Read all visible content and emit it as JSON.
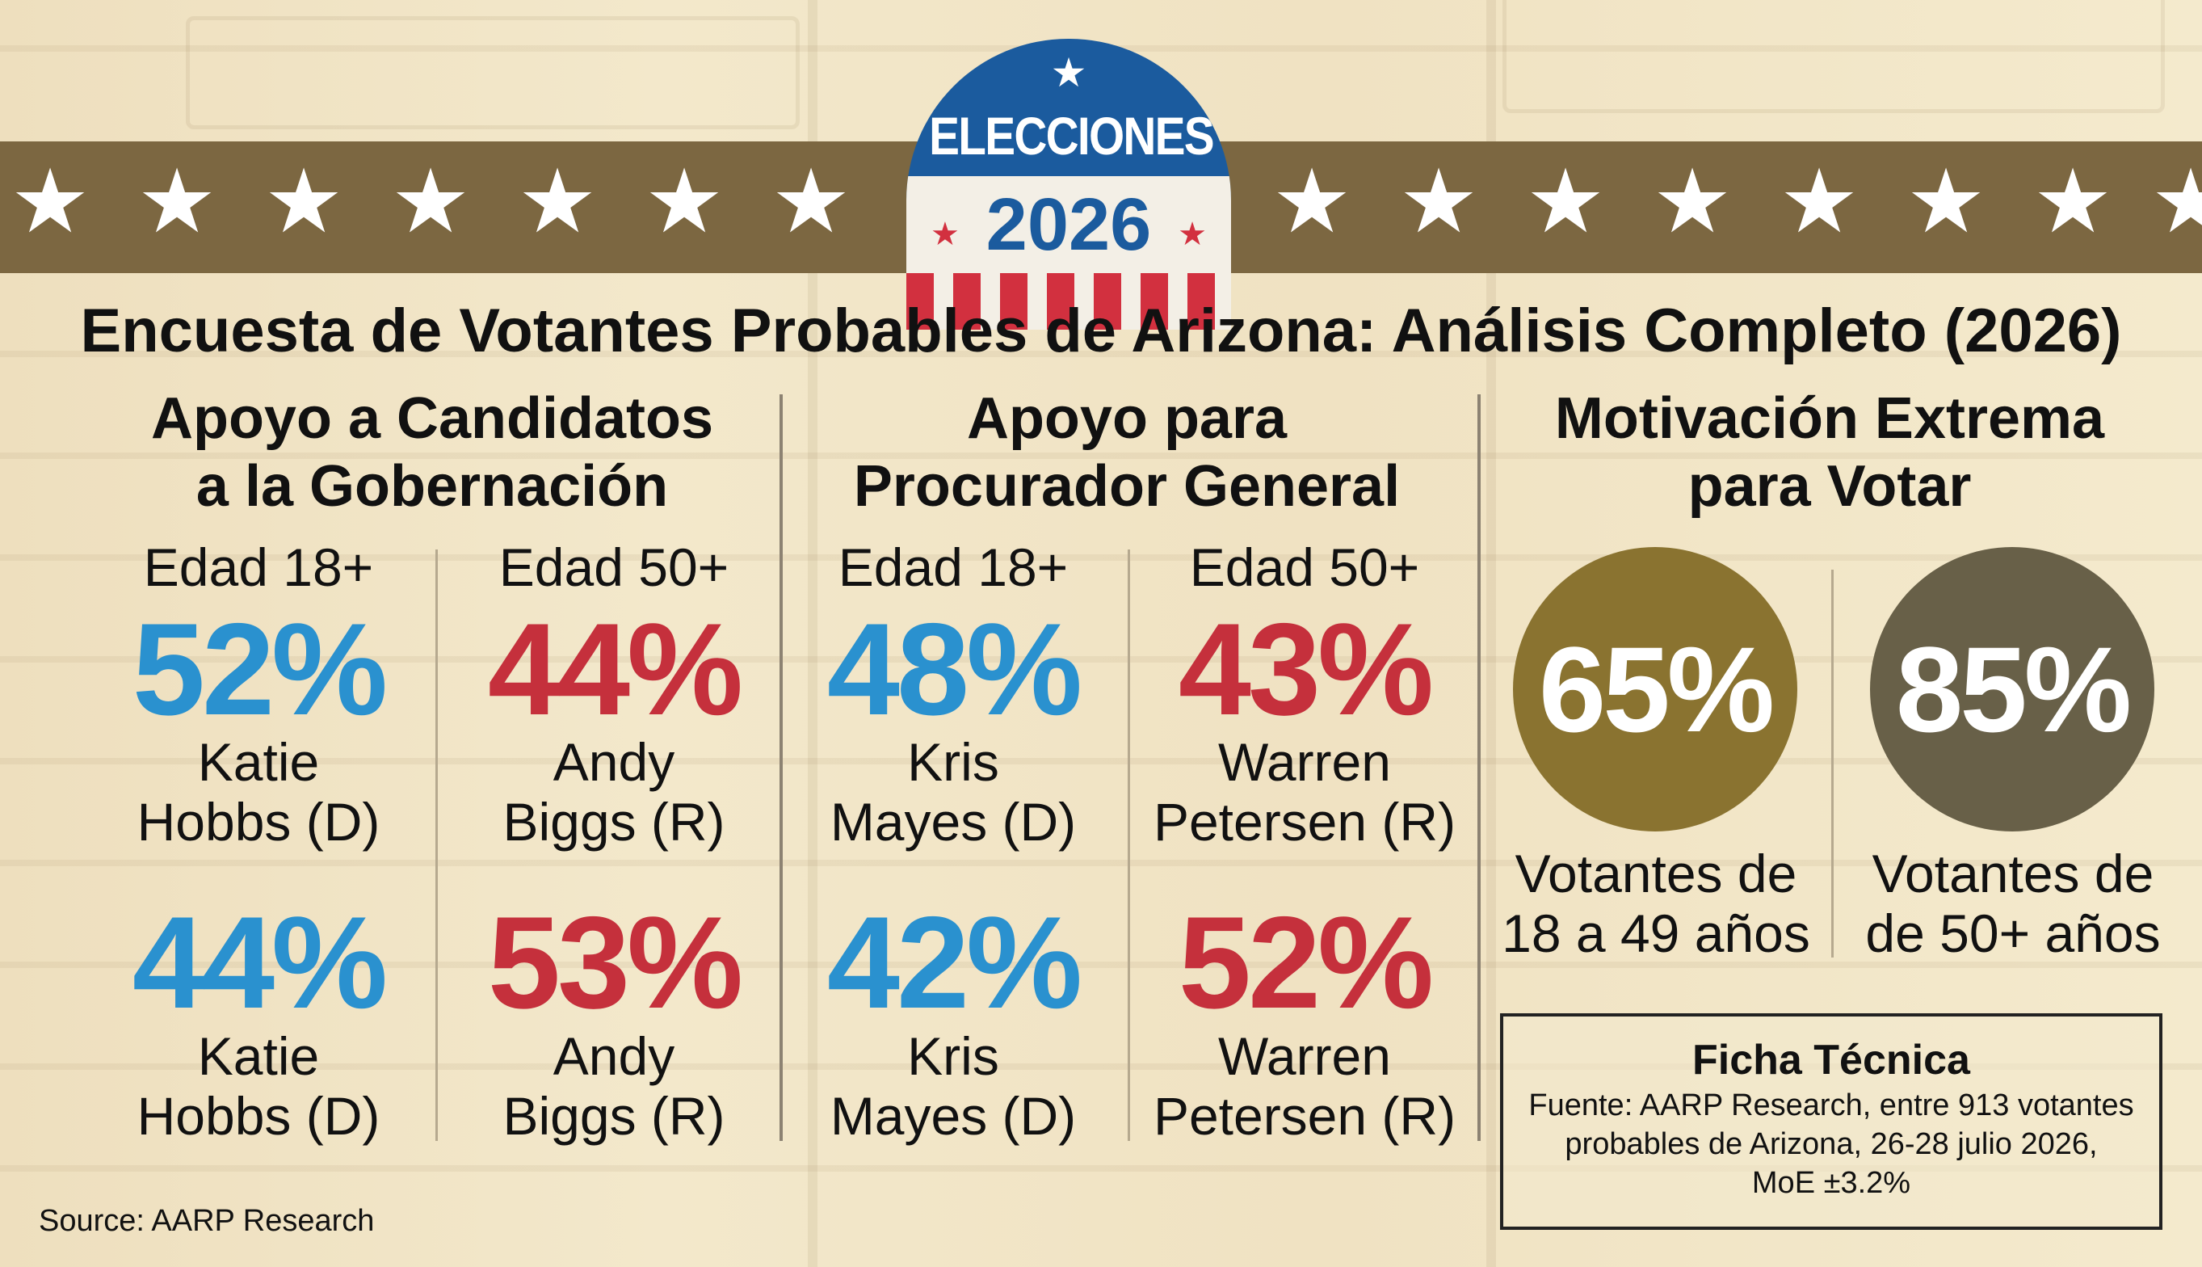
{
  "badge": {
    "title": "ELECCIONES",
    "year": "2026",
    "star": "★"
  },
  "banner": {
    "star": "★"
  },
  "main_title": "Encuesta de Votantes Probables de Arizona: Análisis Completo (2026)",
  "sections": {
    "governor": {
      "title_line1": "Apoyo a Candidatos",
      "title_line2": "a la Gobernación",
      "age_18": "Edad 18+",
      "age_50": "Edad 50+",
      "top_left": {
        "pct": "52%",
        "name_line1": "Katie",
        "name_line2": "Hobbs (D)"
      },
      "top_right": {
        "pct": "44%",
        "name_line1": "Andy",
        "name_line2": "Biggs (R)"
      },
      "bottom_left": {
        "pct": "44%",
        "name_line1": "Katie",
        "name_line2": "Hobbs (D)"
      },
      "bottom_right": {
        "pct": "53%",
        "name_line1": "Andy",
        "name_line2": "Biggs (R)"
      }
    },
    "attorney": {
      "title_line1": "Apoyo para",
      "title_line2": "Procurador General",
      "age_18": "Edad 18+",
      "age_50": "Edad 50+",
      "top_left": {
        "pct": "48%",
        "name_line1": "Kris",
        "name_line2": "Mayes (D)"
      },
      "top_right": {
        "pct": "43%",
        "name_line1": "Warren",
        "name_line2": "Petersen (R)"
      },
      "bottom_left": {
        "pct": "42%",
        "name_line1": "Kris",
        "name_line2": "Mayes (D)"
      },
      "bottom_right": {
        "pct": "52%",
        "name_line1": "Warren",
        "name_line2": "Petersen (R)"
      }
    },
    "motivation": {
      "title_line1": "Motivación Extrema",
      "title_line2": "para Votar",
      "left": {
        "pct": "65%",
        "label_line1": "Votantes de",
        "label_line2": "18 a 49 años"
      },
      "right": {
        "pct": "85%",
        "label_line1": "Votantes de",
        "label_line2": "de 50+ años"
      }
    }
  },
  "ficha": {
    "title": "Ficha Técnica",
    "line1": "Fuente: AARP Research, entre 913 votantes",
    "line2": "probables de Arizona, 26-28 julio 2026,",
    "line3": "MoE ±3.2%"
  },
  "source": "Source: AARP Research",
  "colors": {
    "banner": "#7c6741",
    "democrat_blue": "#2a91cf",
    "republican_red": "#c5303c",
    "circle_gold": "#8a7330",
    "circle_olive": "#686048",
    "badge_blue": "#1b5b9e"
  }
}
